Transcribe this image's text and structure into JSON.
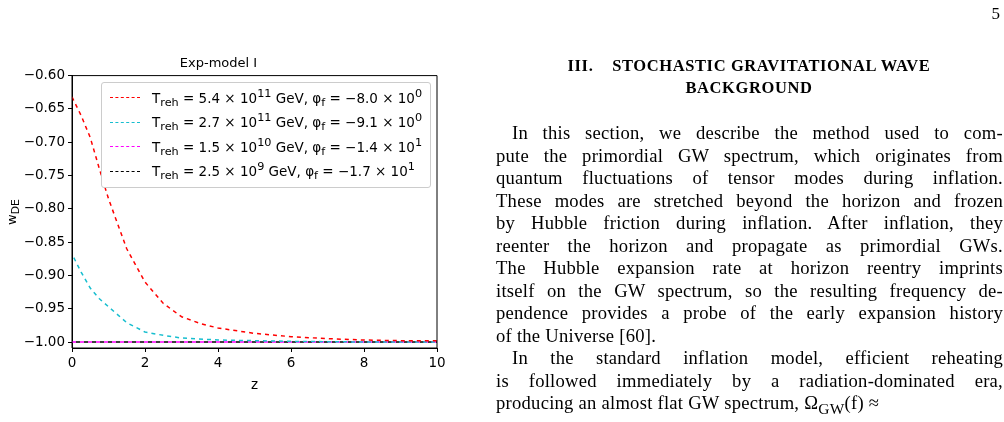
{
  "chart_data": {
    "type": "line",
    "title": "Exp-model I",
    "xlabel": "z",
    "ylabel": "w$_{DE}$",
    "xlim": [
      0,
      10
    ],
    "xticks": [
      0,
      2,
      4,
      6,
      8,
      10
    ],
    "ylim": [
      -1.009,
      -0.6
    ],
    "yticks": [
      {
        "value": -1.0,
        "label": "−1.00"
      },
      {
        "value": -0.95,
        "label": "−0.95"
      },
      {
        "value": -0.9,
        "label": "−0.90"
      },
      {
        "value": -0.85,
        "label": "−0.85"
      },
      {
        "value": -0.8,
        "label": "−0.80"
      },
      {
        "value": -0.75,
        "label": "−0.75"
      },
      {
        "value": -0.7,
        "label": "−0.70"
      },
      {
        "value": -0.65,
        "label": "−0.65"
      },
      {
        "value": -0.6,
        "label": "−0.60"
      }
    ],
    "grid": false,
    "legend": "top right",
    "line_style": "dashed",
    "marker": "none",
    "series": [
      {
        "name": "T$_{reh}$ = 5.4 × 10$^{11}$ GeV, φ$_{f}$ = −8.0 × 10$^{0}$",
        "color": "#ff0000",
        "x": [
          0,
          0.25,
          0.5,
          0.75,
          1,
          1.5,
          2,
          2.5,
          3,
          3.5,
          4,
          5,
          6,
          7,
          8,
          9,
          10
        ],
        "values": [
          -0.632,
          -0.66,
          -0.693,
          -0.74,
          -0.785,
          -0.86,
          -0.91,
          -0.942,
          -0.962,
          -0.972,
          -0.979,
          -0.987,
          -0.992,
          -0.995,
          -0.997,
          -0.998,
          -0.998
        ]
      },
      {
        "name": "T$_{reh}$ = 2.7 × 10$^{11}$ GeV, φ$_{f}$ = −9.1 × 10$^{0}$",
        "color": "#17becf",
        "x": [
          0,
          0.25,
          0.5,
          0.75,
          1,
          1.5,
          2,
          2.5,
          3,
          4,
          5,
          6,
          8,
          10
        ],
        "values": [
          -0.868,
          -0.895,
          -0.919,
          -0.935,
          -0.947,
          -0.971,
          -0.985,
          -0.99,
          -0.994,
          -0.997,
          -0.998,
          -0.999,
          -1.0,
          -1.0
        ]
      },
      {
        "name": "T$_{reh}$ = 1.5 × 10$^{10}$ GeV, φ$_{f}$ = −1.4 × 10$^{1}$",
        "color": "#ff00ff",
        "x": [
          0,
          5,
          10
        ],
        "values": [
          -1.0,
          -1.0,
          -1.0
        ]
      },
      {
        "name": "T$_{reh}$ = 2.5 × 10$^{9}$ GeV, φ$_{f}$ = −1.7 × 10$^{1}$",
        "color": "#000000",
        "x": [
          0,
          5,
          10
        ],
        "values": [
          -1.0,
          -1.0,
          -1.0
        ]
      }
    ],
    "annotations": [
      "5",
      "III.    STOCHASTIC GRAVITATIONAL WAVE\nBACKGROUND",
      "In this section, we describe the method used to com-\npute the primordial GW spectrum, which originates from\nquantum fluctuations of tensor modes during inflation.\nThese modes are stretched beyond the horizon and frozen\nby Hubble friction during inflation. After inflation, they\nreenter the horizon and propagate as primordial GWs.\nThe Hubble expansion rate at horizon reentry imprints\nitself on the GW spectrum, so the resulting frequency de-\npendence provides a probe of the early expansion history\nof the Universe [60].",
      "In the standard inflation model, efficient reheating\nis followed immediately by a radiation-dominated era,\nproducing an almost flat GW spectrum, Ω$_{GW}$(f) ≈"
    ]
  }
}
